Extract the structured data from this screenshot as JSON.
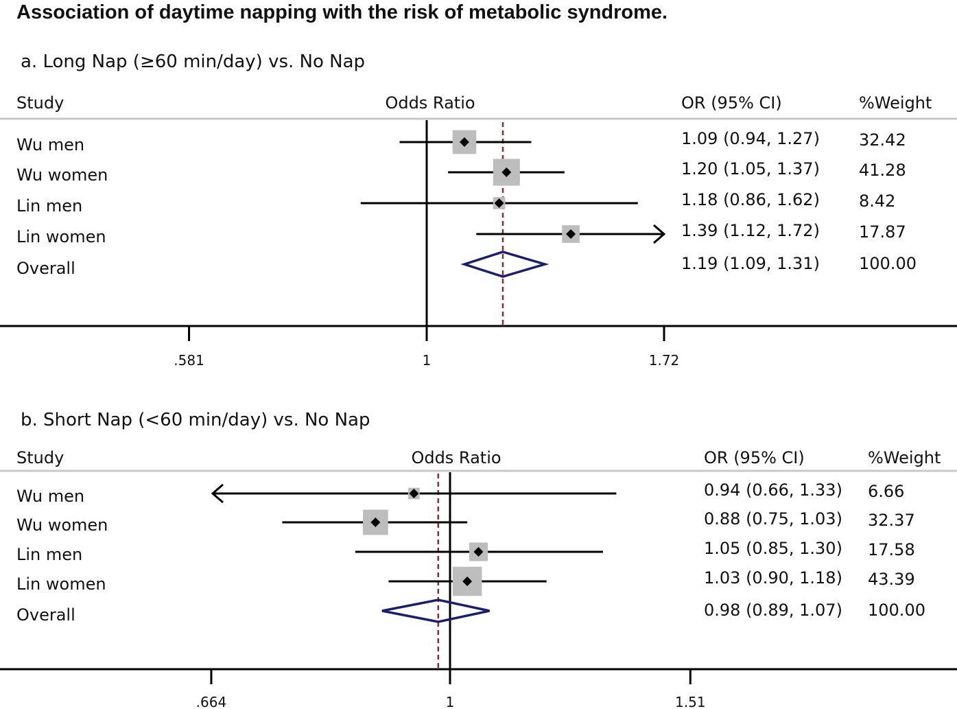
{
  "figure_title": "Association of daytime napping with the risk of metabolic syndrome.",
  "headers": {
    "study": "Study",
    "odds_ratio": "Odds Ratio",
    "or_ci": "OR (95% CI)",
    "weight": "%Weight"
  },
  "colors": {
    "box": "#bdbdbd",
    "point": "#000000",
    "ci_line": "#000000",
    "overall_diamond": "#1b1f6b",
    "overall_line": "#8b2a2a",
    "separator": "#c8c8c8",
    "axis": "#000000"
  },
  "chart_data": [
    {
      "type": "forest",
      "title": "a. Long Nap (≥60 min/day) vs. No Nap",
      "scale": "log",
      "null_value": 1,
      "ticks": [
        {
          "value": 0.581,
          "label": ".581"
        },
        {
          "value": 1,
          "label": "1"
        },
        {
          "value": 1.72,
          "label": "1.72"
        }
      ],
      "rows": [
        {
          "study": "Wu men",
          "or": 1.09,
          "lower": 0.94,
          "upper": 1.27,
          "or_ci": "1.09 (0.94, 1.27)",
          "weight": 32.42,
          "weight_label": "32.42"
        },
        {
          "study": "Wu women",
          "or": 1.2,
          "lower": 1.05,
          "upper": 1.37,
          "or_ci": "1.20 (1.05, 1.37)",
          "weight": 41.28,
          "weight_label": "41.28"
        },
        {
          "study": "Lin men",
          "or": 1.18,
          "lower": 0.86,
          "upper": 1.62,
          "or_ci": "1.18 (0.86, 1.62)",
          "weight": 8.42,
          "weight_label": "8.42"
        },
        {
          "study": "Lin women",
          "or": 1.39,
          "lower": 1.12,
          "upper": 1.72,
          "or_ci": "1.39 (1.12, 1.72)",
          "weight": 17.87,
          "weight_label": "17.87",
          "arrow_right": true
        }
      ],
      "overall": {
        "study": "Overall",
        "or": 1.19,
        "lower": 1.09,
        "upper": 1.31,
        "or_ci": "1.19 (1.09, 1.31)",
        "weight_label": "100.00"
      }
    },
    {
      "type": "forest",
      "title": "b. Short Nap (<60 min/day) vs. No Nap",
      "scale": "log",
      "null_value": 1,
      "ticks": [
        {
          "value": 0.664,
          "label": ".664"
        },
        {
          "value": 1,
          "label": "1"
        },
        {
          "value": 1.51,
          "label": "1.51"
        }
      ],
      "rows": [
        {
          "study": "Wu men",
          "or": 0.94,
          "lower": 0.66,
          "upper": 1.33,
          "or_ci": "0.94 (0.66, 1.33)",
          "weight": 6.66,
          "weight_label": "6.66",
          "arrow_left": true
        },
        {
          "study": "Wu women",
          "or": 0.88,
          "lower": 0.75,
          "upper": 1.03,
          "or_ci": "0.88 (0.75, 1.03)",
          "weight": 32.37,
          "weight_label": "32.37"
        },
        {
          "study": "Lin men",
          "or": 1.05,
          "lower": 0.85,
          "upper": 1.3,
          "or_ci": "1.05 (0.85, 1.30)",
          "weight": 17.58,
          "weight_label": "17.58"
        },
        {
          "study": "Lin women",
          "or": 1.03,
          "lower": 0.9,
          "upper": 1.18,
          "or_ci": "1.03 (0.90, 1.18)",
          "weight": 43.39,
          "weight_label": "43.39"
        }
      ],
      "overall": {
        "study": "Overall",
        "or": 0.98,
        "lower": 0.89,
        "upper": 1.07,
        "or_ci": "0.98 (0.89, 1.07)",
        "weight_label": "100.00"
      }
    }
  ]
}
